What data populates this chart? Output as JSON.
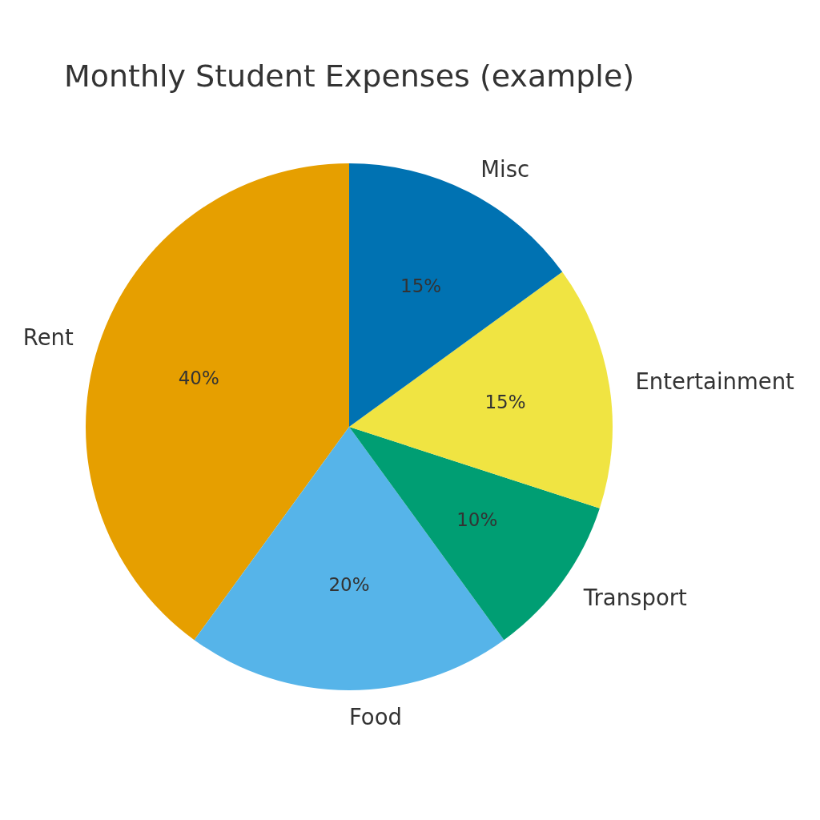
{
  "chart_data": {
    "type": "pie",
    "title": "Monthly Student Expenses (example)",
    "categories": [
      "Rent",
      "Food",
      "Transport",
      "Entertainment",
      "Misc"
    ],
    "values": [
      40,
      20,
      10,
      15,
      15
    ],
    "colors": [
      "#e69f00",
      "#56b4e9",
      "#009e73",
      "#f0e442",
      "#0072b2"
    ],
    "value_labels": [
      "40%",
      "20%",
      "10%",
      "15%",
      "15%"
    ]
  }
}
